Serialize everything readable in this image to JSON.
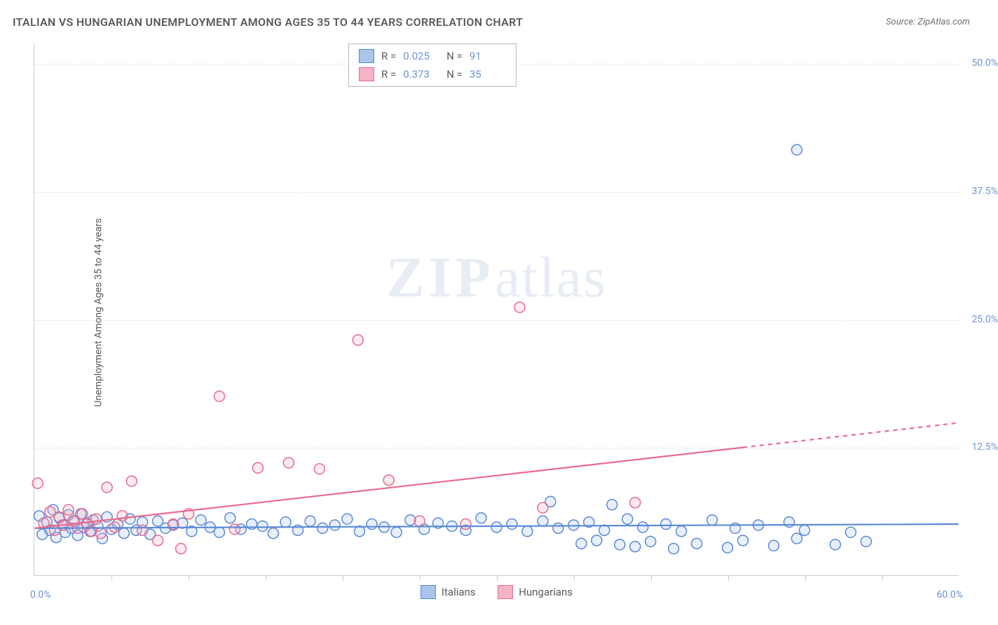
{
  "title": "ITALIAN VS HUNGARIAN UNEMPLOYMENT AMONG AGES 35 TO 44 YEARS CORRELATION CHART",
  "source": "Source: ZipAtlas.com",
  "y_axis_label": "Unemployment Among Ages 35 to 44 years",
  "watermark_bold": "ZIP",
  "watermark_light": "atlas",
  "chart": {
    "type": "scatter",
    "x_min": 0.0,
    "x_max": 60.0,
    "y_min": 0.0,
    "y_max": 52.0,
    "x_min_label": "0.0%",
    "x_max_label": "60.0%",
    "y_ticks": [
      12.5,
      25.0,
      37.5,
      50.0
    ],
    "y_tick_labels": [
      "12.5%",
      "25.0%",
      "37.5%",
      "50.0%"
    ],
    "x_tick_positions": [
      5,
      10,
      15,
      20,
      25,
      30,
      35,
      40,
      45,
      50,
      55
    ],
    "grid_color": "#e3e3e3",
    "axis_color": "#cccccc",
    "background_color": "#ffffff",
    "tick_label_color": "#6d94d0",
    "marker_radius": 7.5,
    "marker_stroke_width": 1.5,
    "marker_fill_opacity": 0.28,
    "trendline_width": 2.2
  },
  "series": [
    {
      "id": "italians",
      "label": "Italians",
      "stroke": "#5b8ad6",
      "fill": "#a9c5ec",
      "r": 0.025,
      "n": 91,
      "trendline": {
        "y_at_xmin": 4.6,
        "y_at_xmax": 5.0,
        "x_extent": 60
      },
      "points": [
        [
          0.3,
          5.8
        ],
        [
          0.5,
          4.0
        ],
        [
          0.8,
          5.2
        ],
        [
          1.0,
          4.4
        ],
        [
          1.2,
          6.4
        ],
        [
          1.4,
          3.7
        ],
        [
          1.6,
          5.6
        ],
        [
          1.8,
          4.9
        ],
        [
          2.0,
          4.2
        ],
        [
          2.2,
          5.9
        ],
        [
          2.4,
          4.6
        ],
        [
          2.6,
          5.3
        ],
        [
          2.8,
          3.9
        ],
        [
          3.0,
          6.0
        ],
        [
          3.2,
          4.7
        ],
        [
          3.4,
          5.1
        ],
        [
          3.6,
          4.3
        ],
        [
          3.8,
          5.4
        ],
        [
          4.1,
          4.8
        ],
        [
          4.4,
          3.6
        ],
        [
          4.7,
          5.7
        ],
        [
          5.0,
          4.5
        ],
        [
          5.4,
          5.0
        ],
        [
          5.8,
          4.1
        ],
        [
          6.2,
          5.5
        ],
        [
          6.6,
          4.4
        ],
        [
          7.0,
          5.2
        ],
        [
          7.5,
          4.0
        ],
        [
          8.0,
          5.3
        ],
        [
          8.5,
          4.6
        ],
        [
          9.0,
          4.9
        ],
        [
          9.6,
          5.1
        ],
        [
          10.2,
          4.3
        ],
        [
          10.8,
          5.4
        ],
        [
          11.4,
          4.7
        ],
        [
          12.0,
          4.2
        ],
        [
          12.7,
          5.6
        ],
        [
          13.4,
          4.5
        ],
        [
          14.1,
          5.0
        ],
        [
          14.8,
          4.8
        ],
        [
          15.5,
          4.1
        ],
        [
          16.3,
          5.2
        ],
        [
          17.1,
          4.4
        ],
        [
          17.9,
          5.3
        ],
        [
          18.7,
          4.6
        ],
        [
          19.5,
          4.9
        ],
        [
          20.3,
          5.5
        ],
        [
          21.1,
          4.3
        ],
        [
          21.9,
          5.0
        ],
        [
          22.7,
          4.7
        ],
        [
          23.5,
          4.2
        ],
        [
          24.4,
          5.4
        ],
        [
          25.3,
          4.5
        ],
        [
          26.2,
          5.1
        ],
        [
          27.1,
          4.8
        ],
        [
          28.0,
          4.4
        ],
        [
          29.0,
          5.6
        ],
        [
          30.0,
          4.7
        ],
        [
          31.0,
          5.0
        ],
        [
          32.0,
          4.3
        ],
        [
          33.0,
          5.3
        ],
        [
          33.5,
          7.2
        ],
        [
          34.0,
          4.6
        ],
        [
          35.0,
          4.9
        ],
        [
          35.5,
          3.1
        ],
        [
          36.0,
          5.2
        ],
        [
          36.5,
          3.4
        ],
        [
          37.0,
          4.4
        ],
        [
          37.5,
          6.9
        ],
        [
          38.0,
          3.0
        ],
        [
          38.5,
          5.5
        ],
        [
          39.0,
          2.8
        ],
        [
          39.5,
          4.7
        ],
        [
          40.0,
          3.3
        ],
        [
          41.0,
          5.0
        ],
        [
          41.5,
          2.6
        ],
        [
          42.0,
          4.3
        ],
        [
          43.0,
          3.1
        ],
        [
          44.0,
          5.4
        ],
        [
          45.0,
          2.7
        ],
        [
          45.5,
          4.6
        ],
        [
          46.0,
          3.4
        ],
        [
          47.0,
          4.9
        ],
        [
          48.0,
          2.9
        ],
        [
          49.0,
          5.2
        ],
        [
          49.5,
          3.6
        ],
        [
          50.0,
          4.4
        ],
        [
          52.0,
          3.0
        ],
        [
          53.0,
          4.2
        ],
        [
          54.0,
          3.3
        ],
        [
          49.5,
          41.6
        ]
      ]
    },
    {
      "id": "hungarians",
      "label": "Hungarians",
      "stroke": "#e96a8d",
      "fill": "#f4b4c6",
      "r": 0.373,
      "n": 35,
      "trendline": {
        "y_at_xmin": 4.6,
        "y_at_xmax": 14.9,
        "x_extent": 46,
        "dashed_after": 46
      },
      "points": [
        [
          0.2,
          9.0
        ],
        [
          0.6,
          5.1
        ],
        [
          1.0,
          6.2
        ],
        [
          1.3,
          4.4
        ],
        [
          1.6,
          5.7
        ],
        [
          1.9,
          4.9
        ],
        [
          2.2,
          6.4
        ],
        [
          2.5,
          5.3
        ],
        [
          2.8,
          4.6
        ],
        [
          3.1,
          6.0
        ],
        [
          3.4,
          5.0
        ],
        [
          3.7,
          4.3
        ],
        [
          4.0,
          5.5
        ],
        [
          4.3,
          4.1
        ],
        [
          4.7,
          8.6
        ],
        [
          5.2,
          4.7
        ],
        [
          5.7,
          5.8
        ],
        [
          6.3,
          9.2
        ],
        [
          7.0,
          4.4
        ],
        [
          8.0,
          3.4
        ],
        [
          9.0,
          5.0
        ],
        [
          9.5,
          2.6
        ],
        [
          10.0,
          6.0
        ],
        [
          12.0,
          17.5
        ],
        [
          13.0,
          4.5
        ],
        [
          14.5,
          10.5
        ],
        [
          16.5,
          11.0
        ],
        [
          18.5,
          10.4
        ],
        [
          21.0,
          23.0
        ],
        [
          23.0,
          9.3
        ],
        [
          25.0,
          5.3
        ],
        [
          28.0,
          5.0
        ],
        [
          31.5,
          26.2
        ],
        [
          33.0,
          6.6
        ],
        [
          39.0,
          7.1
        ]
      ]
    }
  ],
  "stats_box": {
    "r_label": "R =",
    "n_label": "N ="
  },
  "bottom_legend": {
    "items": [
      "Italians",
      "Hungarians"
    ]
  }
}
